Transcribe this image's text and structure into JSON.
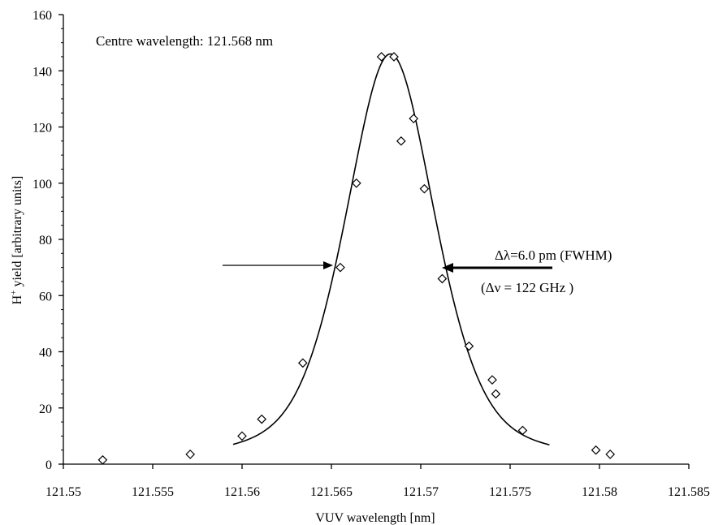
{
  "chart_data": {
    "type": "scatter",
    "xlabel": "VUV wavelength [nm]",
    "ylabel_main": "H",
    "ylabel_sup": "+",
    "ylabel_rest": " yield [arbitrary units]",
    "xlim": [
      121.55,
      121.585
    ],
    "ylim": [
      0,
      160
    ],
    "x_ticks": [
      121.55,
      121.555,
      121.56,
      121.565,
      121.57,
      121.575,
      121.58,
      121.585
    ],
    "x_tick_labels": [
      "121.55",
      "121.555",
      "121.56",
      "121.565",
      "121.57",
      "121.575",
      "121.58",
      "121.585"
    ],
    "y_ticks": [
      0,
      20,
      40,
      60,
      80,
      100,
      120,
      140,
      160
    ],
    "y_tick_labels": [
      "0",
      "20",
      "40",
      "60",
      "80",
      "100",
      "120",
      "140",
      "160"
    ],
    "grid": false,
    "series": [
      {
        "kind": "points",
        "marker": "diamond",
        "x": [
          121.5522,
          121.5571,
          121.56,
          121.5611,
          121.5634,
          121.5655,
          121.5664,
          121.5678,
          121.5685,
          121.5689,
          121.5696,
          121.5702,
          121.5712,
          121.5727,
          121.574,
          121.5742,
          121.5757,
          121.5798,
          121.5806
        ],
        "y": [
          1.5,
          3.5,
          10,
          16,
          36,
          70,
          100,
          145,
          145,
          115,
          123,
          98,
          66,
          42,
          30,
          25,
          12,
          5,
          3.5
        ]
      },
      {
        "kind": "fit",
        "center": 121.5683,
        "peak": 146,
        "fwhm": 0.006,
        "xrange": [
          121.5595,
          121.5772
        ]
      }
    ],
    "annotations": {
      "centre": "Centre wavelength: 121.568 nm",
      "fwhm_label": "Δλ=6.0 pm (FWHM)",
      "freq_label": "(Δν = 122 GHz )"
    }
  }
}
